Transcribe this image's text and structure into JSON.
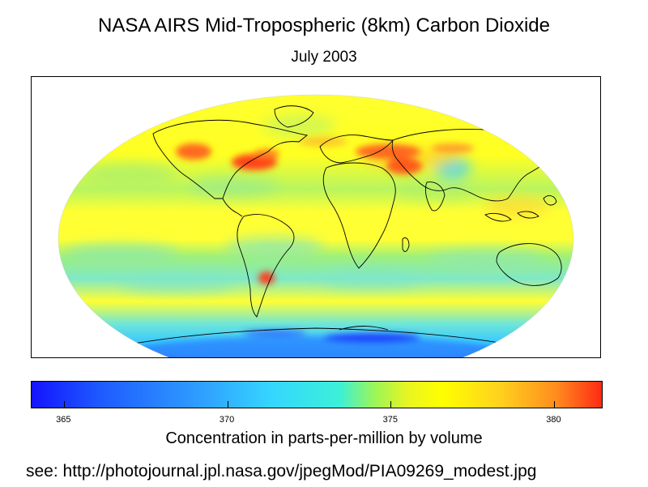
{
  "title": "NASA AIRS Mid-Tropospheric (8km) Carbon Dioxide",
  "subtitle": "July 2003",
  "map": {
    "projection": "Mollweide",
    "coastlines_color": "#000000",
    "background_color": "#ffff33"
  },
  "colorbar": {
    "range": [
      364,
      381.5
    ],
    "ticks": [
      {
        "value": 365,
        "label": "365"
      },
      {
        "value": 370,
        "label": "370"
      },
      {
        "value": 375,
        "label": "375"
      },
      {
        "value": 380,
        "label": "380"
      }
    ],
    "colors": [
      "#1414ff",
      "#2fa0ff",
      "#35d6ff",
      "#9af55a",
      "#ffff00",
      "#ff8c1e",
      "#ff2a14"
    ],
    "label": "Concentration in parts-per-million by volume"
  },
  "source_text": "see: http://photojournal.jpl.nasa.gov/jpegMod/PIA09269_modest.jpg"
}
